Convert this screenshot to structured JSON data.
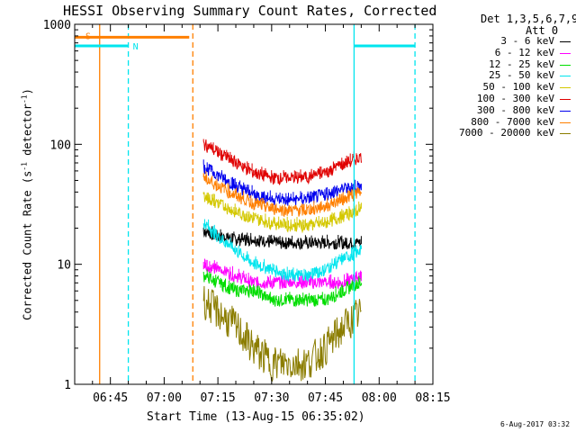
{
  "title": "HESSI Observing Summary Count Rates, Corrected",
  "xlabel_prefix": "Start Time",
  "xlabel": "Start Time (13-Aug-15 06:35:02)",
  "footer": "6-Aug-2017 03:32",
  "legend_header": [
    "Det 1,3,5,6,7,9,",
    "Att 0"
  ],
  "legend": [
    {
      "label": "3 - 6 keV",
      "color": "#000000"
    },
    {
      "label": "6 - 12 keV",
      "color": "#ff00ff"
    },
    {
      "label": "12 - 25 keV",
      "color": "#00dd00"
    },
    {
      "label": "25 - 50 keV",
      "color": "#00e5ee"
    },
    {
      "label": "50 - 100 keV",
      "color": "#d4c800"
    },
    {
      "label": "100 - 300 keV",
      "color": "#e00000"
    },
    {
      "label": "300 - 800 keV",
      "color": "#0000ee"
    },
    {
      "label": "800 - 7000 keV",
      "color": "#ff7f00"
    },
    {
      "label": "7000 - 20000 keV",
      "color": "#8b7d00"
    }
  ],
  "flags": [
    {
      "label": "S",
      "color": "#ff7f00"
    },
    {
      "label": "N",
      "color": "#00e5ee"
    }
  ],
  "chart_data": {
    "type": "line",
    "title": "HESSI Observing Summary Count Rates, Corrected",
    "xlabel": "Start Time (13-Aug-15 06:35:02)",
    "ylabel": "Corrected Count Rate (s^-1 detector^-1)",
    "y_scale": "log",
    "ylim": [
      1,
      1000
    ],
    "xlim": [
      "06:35:02",
      "08:15"
    ],
    "x_ticks": [
      "06:45",
      "07:00",
      "07:15",
      "07:30",
      "07:45",
      "08:00",
      "08:15"
    ],
    "y_ticks": [
      "1",
      "10",
      "100",
      "1000"
    ],
    "x": [
      "07:11",
      "07:15",
      "07:20",
      "07:25",
      "07:30",
      "07:35",
      "07:40",
      "07:45",
      "07:50",
      "07:55"
    ],
    "series": [
      {
        "name": "3 - 6 keV",
        "color": "#000000",
        "values": [
          19,
          17,
          16,
          16,
          15,
          15,
          15,
          15,
          15,
          15
        ]
      },
      {
        "name": "6 - 12 keV",
        "color": "#ff00ff",
        "values": [
          10,
          9,
          8,
          7,
          7,
          7,
          7,
          7,
          7,
          8
        ]
      },
      {
        "name": "12 - 25 keV",
        "color": "#00dd00",
        "values": [
          8,
          7,
          6,
          6,
          5,
          5,
          5,
          5,
          6,
          7
        ]
      },
      {
        "name": "25 - 50 keV",
        "color": "#00e5ee",
        "values": [
          22,
          17,
          13,
          10,
          9,
          8,
          8,
          9,
          11,
          13
        ]
      },
      {
        "name": "50 - 100 keV",
        "color": "#d4c800",
        "values": [
          37,
          32,
          27,
          24,
          22,
          21,
          21,
          22,
          25,
          29
        ]
      },
      {
        "name": "100 - 300 keV",
        "color": "#e00000",
        "values": [
          100,
          85,
          70,
          58,
          52,
          52,
          53,
          58,
          68,
          78
        ]
      },
      {
        "name": "300 - 800 keV",
        "color": "#0000ee",
        "values": [
          65,
          55,
          45,
          38,
          35,
          34,
          35,
          38,
          42,
          45
        ]
      },
      {
        "name": "800 - 7000 keV",
        "color": "#ff7f00",
        "values": [
          52,
          45,
          37,
          32,
          29,
          28,
          28,
          30,
          35,
          40
        ]
      },
      {
        "name": "7000 - 20000 keV",
        "color": "#8b7d00",
        "values": [
          5,
          4,
          3,
          2,
          1.5,
          1.5,
          1.5,
          2,
          3,
          4
        ]
      }
    ],
    "observing_flags": [
      {
        "label": "S",
        "color": "#ff7f00",
        "start": "06:35:02",
        "end": "07:07",
        "level": 780
      },
      {
        "label": "N",
        "color": "#00e5ee",
        "start": "06:35:02",
        "end": "06:50",
        "level": 660
      },
      {
        "label": "",
        "color": "#00e5ee",
        "start": "07:53",
        "end": "08:10",
        "level": 660
      }
    ],
    "vertical_markers": [
      {
        "time": "06:42",
        "color": "#ff7f00",
        "style": "solid"
      },
      {
        "time": "06:50",
        "color": "#00e5ee",
        "style": "dashed"
      },
      {
        "time": "07:08",
        "color": "#ff7f00",
        "style": "dashed"
      },
      {
        "time": "07:53",
        "color": "#00e5ee",
        "style": "solid"
      },
      {
        "time": "08:10",
        "color": "#00e5ee",
        "style": "dashed"
      }
    ]
  }
}
